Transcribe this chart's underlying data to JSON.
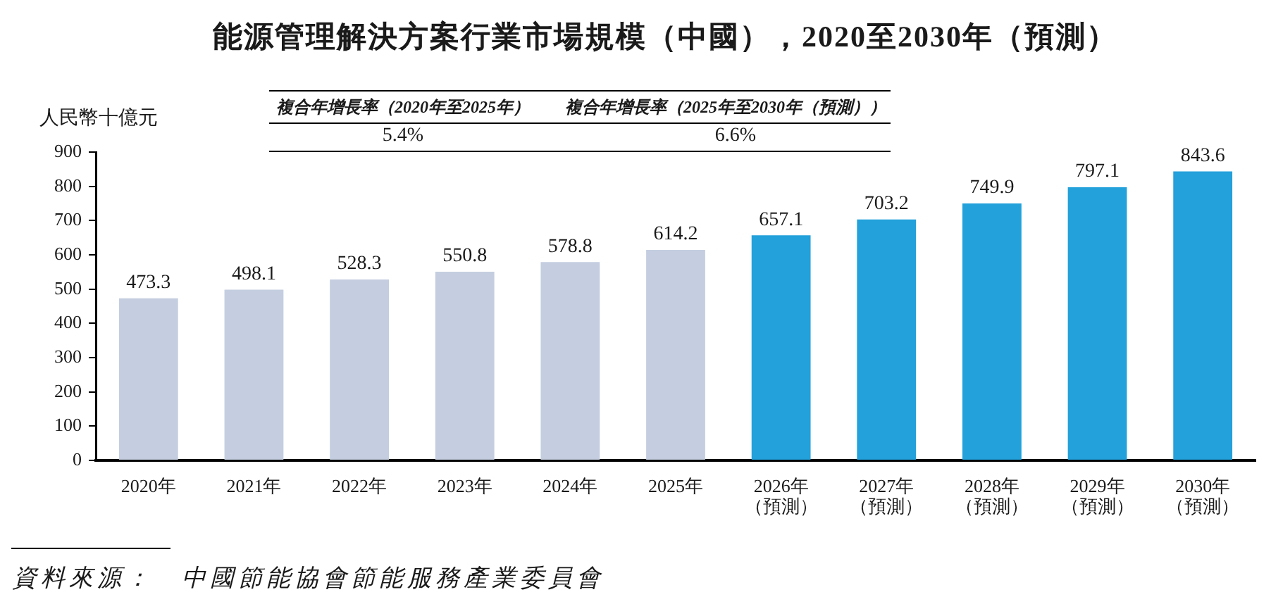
{
  "chart_data": {
    "type": "bar",
    "title": "能源管理解決方案行業市場規模（中國），2020至2030年（預測）",
    "ylabel": "人民幣十億元",
    "categories": [
      "2020年",
      "2021年",
      "2022年",
      "2023年",
      "2024年",
      "2025年",
      "2026年（預測）",
      "2027年（預測）",
      "2028年（預測）",
      "2029年（預測）",
      "2030年（預測）"
    ],
    "values": [
      473.3,
      498.1,
      528.3,
      550.8,
      578.8,
      614.2,
      657.1,
      703.2,
      749.9,
      797.1,
      843.6
    ],
    "colors": [
      "#c4cee0",
      "#c4cee0",
      "#c4cee0",
      "#c4cee0",
      "#c4cee0",
      "#c4cee0",
      "#23a1db",
      "#23a1db",
      "#23a1db",
      "#23a1db",
      "#23a1db"
    ],
    "ylim": [
      0,
      900
    ],
    "yticks": [
      0,
      100,
      200,
      300,
      400,
      500,
      600,
      700,
      800,
      900
    ],
    "data_labels": true,
    "annotations": [
      "複合年增長率（2020年至2025年）",
      "5.4%",
      "複合年增長率（2025年至2030年（預測））",
      "6.6%",
      "資料來源：　中國節能協會節能服務產業委員會"
    ]
  }
}
